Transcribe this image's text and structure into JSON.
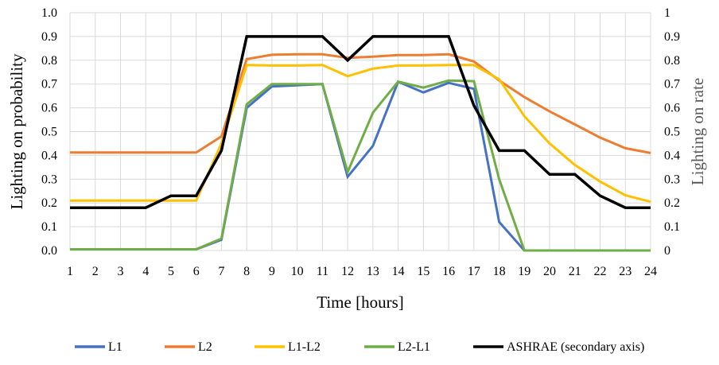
{
  "chart_data": {
    "type": "line",
    "x": [
      1,
      2,
      3,
      4,
      5,
      6,
      7,
      8,
      9,
      10,
      11,
      12,
      13,
      14,
      15,
      16,
      17,
      18,
      19,
      20,
      21,
      22,
      23,
      24
    ],
    "xlabel": "Time [hours]",
    "ylabel": "Lighting on probability",
    "y2label": "Lighting on rate",
    "ylim": [
      0,
      1
    ],
    "y2lim": [
      0,
      1
    ],
    "yticks": [
      "0.0",
      "0.1",
      "0.2",
      "0.3",
      "0.4",
      "0.5",
      "0.6",
      "0.7",
      "0.8",
      "0.9",
      "1.0"
    ],
    "y2ticks": [
      "0",
      "0.1",
      "0.2",
      "0.3",
      "0.4",
      "0.5",
      "0.6",
      "0.7",
      "0.8",
      "0.9",
      "1"
    ],
    "grid": true,
    "legend_position": "bottom",
    "series": [
      {
        "name": "L1",
        "color": "#4472C4",
        "axis": "primary",
        "values": [
          0.005,
          0.005,
          0.005,
          0.005,
          0.005,
          0.005,
          0.045,
          0.6,
          0.69,
          0.695,
          0.7,
          0.31,
          0.44,
          0.71,
          0.665,
          0.705,
          0.68,
          0.12,
          0.0,
          0.0,
          0.0,
          0.0,
          0.0,
          0.0
        ]
      },
      {
        "name": "L2",
        "color": "#ED7D31",
        "axis": "primary",
        "values": [
          0.412,
          0.412,
          0.412,
          0.412,
          0.412,
          0.412,
          0.48,
          0.805,
          0.823,
          0.825,
          0.825,
          0.81,
          0.815,
          0.822,
          0.822,
          0.825,
          0.795,
          0.715,
          0.645,
          0.585,
          0.53,
          0.475,
          0.43,
          0.41
        ]
      },
      {
        "name": "L1-L2",
        "color": "#FFC000",
        "axis": "primary",
        "values": [
          0.21,
          0.21,
          0.21,
          0.21,
          0.21,
          0.21,
          0.45,
          0.78,
          0.778,
          0.778,
          0.78,
          0.733,
          0.765,
          0.778,
          0.778,
          0.78,
          0.78,
          0.72,
          0.565,
          0.45,
          0.36,
          0.29,
          0.232,
          0.205
        ]
      },
      {
        "name": "L2-L1",
        "color": "#70AD47",
        "axis": "primary",
        "values": [
          0.005,
          0.005,
          0.005,
          0.005,
          0.005,
          0.005,
          0.05,
          0.615,
          0.7,
          0.7,
          0.7,
          0.33,
          0.58,
          0.71,
          0.685,
          0.715,
          0.712,
          0.3,
          0.0,
          0.0,
          0.0,
          0.0,
          0.0,
          0.0
        ]
      },
      {
        "name": "ASHRAE (secondary axis)",
        "color": "#000000",
        "axis": "secondary",
        "values": [
          0.18,
          0.18,
          0.18,
          0.18,
          0.23,
          0.23,
          0.42,
          0.9,
          0.9,
          0.9,
          0.9,
          0.8,
          0.9,
          0.9,
          0.9,
          0.9,
          0.61,
          0.42,
          0.42,
          0.32,
          0.32,
          0.23,
          0.18,
          0.18
        ]
      }
    ]
  }
}
